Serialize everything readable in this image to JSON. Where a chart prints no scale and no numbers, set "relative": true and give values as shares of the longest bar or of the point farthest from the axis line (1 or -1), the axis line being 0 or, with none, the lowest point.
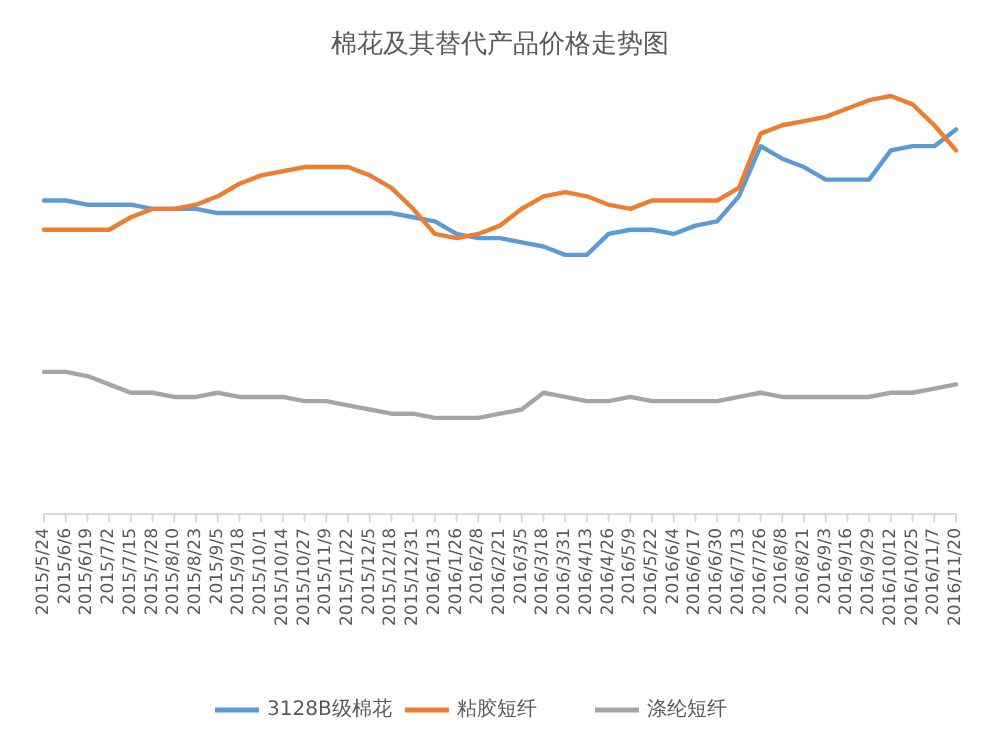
{
  "chart_data": {
    "type": "line",
    "title": "棉花及其替代产品价格走势图",
    "relative": true,
    "legend": "bottom",
    "grid": false,
    "marker": "none",
    "line_style": "solid",
    "x": [
      "2015-05-24",
      "2015-06-06",
      "2015-06-19",
      "2015-07-02",
      "2015-07-15",
      "2015-07-28",
      "2015-08-10",
      "2015-08-23",
      "2015-09-05",
      "2015-09-18",
      "2015-10-01",
      "2015-10-14",
      "2015-10-27",
      "2015-11-09",
      "2015-11-22",
      "2015-12-05",
      "2015-12-18",
      "2015-12-31",
      "2016-01-13",
      "2016-01-26",
      "2016-02-08",
      "2016-02-21",
      "2016-03-05",
      "2016-03-18",
      "2016-03-31",
      "2016-04-13",
      "2016-04-26",
      "2016-05-09",
      "2016-05-22",
      "2016-06-04",
      "2016-06-17",
      "2016-06-30",
      "2016-07-13",
      "2016-07-26",
      "2016-08-08",
      "2016-08-21",
      "2016-09-03",
      "2016-09-16",
      "2016-09-29",
      "2016-10-12",
      "2016-10-25",
      "2016-11-07",
      "2016-11-20"
    ],
    "xlim": [
      "2015-05-24",
      "2016-11-20"
    ],
    "xticks": [
      {
        "value": "2015-05-24",
        "label": "2015/5/24"
      },
      {
        "value": "2015-06-06",
        "label": "2015/6/6"
      },
      {
        "value": "2015-06-19",
        "label": "2015/6/19"
      },
      {
        "value": "2015-07-02",
        "label": "2015/7/2"
      },
      {
        "value": "2015-07-15",
        "label": "2015/7/15"
      },
      {
        "value": "2015-07-28",
        "label": "2015/7/28"
      },
      {
        "value": "2015-08-10",
        "label": "2015/8/10"
      },
      {
        "value": "2015-08-23",
        "label": "2015/8/23"
      },
      {
        "value": "2015-09-05",
        "label": "2015/9/5"
      },
      {
        "value": "2015-09-18",
        "label": "2015/9/18"
      },
      {
        "value": "2015-10-01",
        "label": "2015/10/1"
      },
      {
        "value": "2015-10-14",
        "label": "2015/10/14"
      },
      {
        "value": "2015-10-27",
        "label": "2015/10/27"
      },
      {
        "value": "2015-11-09",
        "label": "2015/11/9"
      },
      {
        "value": "2015-11-22",
        "label": "2015/11/22"
      },
      {
        "value": "2015-12-05",
        "label": "2015/12/5"
      },
      {
        "value": "2015-12-18",
        "label": "2015/12/18"
      },
      {
        "value": "2015-12-31",
        "label": "2015/12/31"
      },
      {
        "value": "2016-01-13",
        "label": "2016/1/13"
      },
      {
        "value": "2016-01-26",
        "label": "2016/1/26"
      },
      {
        "value": "2016-02-08",
        "label": "2016/2/8"
      },
      {
        "value": "2016-02-21",
        "label": "2016/2/21"
      },
      {
        "value": "2016-03-05",
        "label": "2016/3/5"
      },
      {
        "value": "2016-03-18",
        "label": "2016/3/18"
      },
      {
        "value": "2016-03-31",
        "label": "2016/3/31"
      },
      {
        "value": "2016-04-13",
        "label": "2016/4/13"
      },
      {
        "value": "2016-04-26",
        "label": "2016/4/26"
      },
      {
        "value": "2016-05-09",
        "label": "2016/5/9"
      },
      {
        "value": "2016-05-22",
        "label": "2016/5/22"
      },
      {
        "value": "2016-06-04",
        "label": "2016/6/4"
      },
      {
        "value": "2016-06-17",
        "label": "2016/6/17"
      },
      {
        "value": "2016-06-30",
        "label": "2016/6/30"
      },
      {
        "value": "2016-07-13",
        "label": "2016/7/13"
      },
      {
        "value": "2016-07-26",
        "label": "2016/7/26"
      },
      {
        "value": "2016-08-08",
        "label": "2016/8/8"
      },
      {
        "value": "2016-08-21",
        "label": "2016/8/21"
      },
      {
        "value": "2016-09-03",
        "label": "2016/9/3"
      },
      {
        "value": "2016-09-16",
        "label": "2016/9/16"
      },
      {
        "value": "2016-09-29",
        "label": "2016/9/29"
      },
      {
        "value": "2016-10-12",
        "label": "2016/10/12"
      },
      {
        "value": "2016-10-25",
        "label": "2016/10/25"
      },
      {
        "value": "2016-11-07",
        "label": "2016/11/7"
      },
      {
        "value": "2016-11-20",
        "label": "2016/11/20"
      }
    ],
    "series": [
      {
        "name": "3128B级棉花",
        "color": "#5b9bd5",
        "values": [
          0.75,
          0.75,
          0.74,
          0.74,
          0.74,
          0.73,
          0.73,
          0.73,
          0.72,
          0.72,
          0.72,
          0.72,
          0.72,
          0.72,
          0.72,
          0.72,
          0.72,
          0.71,
          0.7,
          0.67,
          0.66,
          0.66,
          0.65,
          0.64,
          0.62,
          0.62,
          0.67,
          0.68,
          0.68,
          0.67,
          0.69,
          0.7,
          0.76,
          0.88,
          0.85,
          0.83,
          0.8,
          0.8,
          0.8,
          0.87,
          0.88,
          0.88,
          0.92
        ]
      },
      {
        "name": "粘胶短纤",
        "color": "#ed7d31",
        "values": [
          0.68,
          0.68,
          0.68,
          0.68,
          0.71,
          0.73,
          0.73,
          0.74,
          0.76,
          0.79,
          0.81,
          0.82,
          0.83,
          0.83,
          0.83,
          0.81,
          0.78,
          0.73,
          0.67,
          0.66,
          0.67,
          0.69,
          0.73,
          0.76,
          0.77,
          0.76,
          0.74,
          0.73,
          0.75,
          0.75,
          0.75,
          0.75,
          0.78,
          0.91,
          0.93,
          0.94,
          0.95,
          0.97,
          0.99,
          1,
          0.98,
          0.93,
          0.87
        ]
      },
      {
        "name": "涤纶短纤",
        "color": "#a5a5a5",
        "values": [
          0.34,
          0.34,
          0.33,
          0.31,
          0.29,
          0.29,
          0.28,
          0.28,
          0.29,
          0.28,
          0.28,
          0.28,
          0.27,
          0.27,
          0.26,
          0.25,
          0.24,
          0.24,
          0.23,
          0.23,
          0.23,
          0.24,
          0.25,
          0.29,
          0.28,
          0.27,
          0.27,
          0.28,
          0.27,
          0.27,
          0.27,
          0.27,
          0.28,
          0.29,
          0.28,
          0.28,
          0.28,
          0.28,
          0.28,
          0.29,
          0.29,
          0.3,
          0.31
        ]
      }
    ]
  }
}
